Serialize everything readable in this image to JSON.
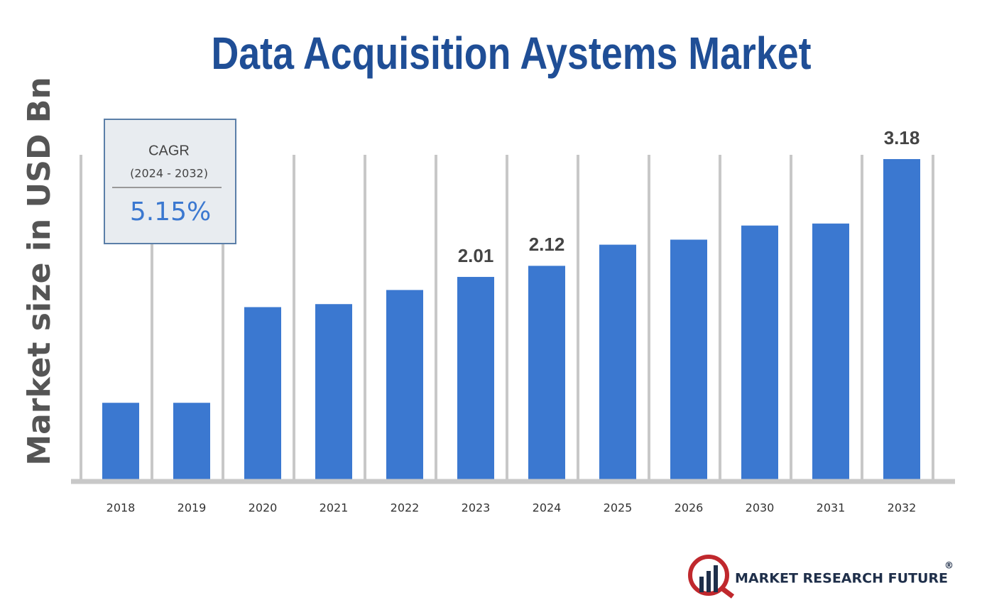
{
  "chart_data": {
    "type": "bar",
    "title": "Data Acquisition Aystems Market",
    "y_label": "Market size in USD Bn",
    "categories": [
      "2018",
      "2019",
      "2020",
      "2021",
      "2022",
      "2023",
      "2024",
      "2025",
      "2026",
      "2030",
      "2031",
      "2032"
    ],
    "values": [
      0.76,
      0.76,
      1.71,
      1.74,
      1.88,
      2.01,
      2.12,
      2.33,
      2.38,
      2.52,
      2.54,
      3.18
    ],
    "value_labels": [
      null,
      null,
      null,
      null,
      null,
      "2.01",
      "2.12",
      null,
      null,
      null,
      null,
      "3.18"
    ],
    "color": "#3b78d0",
    "ylim": [
      0,
      3.3
    ],
    "cagr": {
      "label": "CAGR",
      "period": "(2024 - 2032)",
      "value": "5.15%"
    },
    "brand": {
      "name": "MARKET RESEARCH FUTURE",
      "mark": "®"
    }
  }
}
